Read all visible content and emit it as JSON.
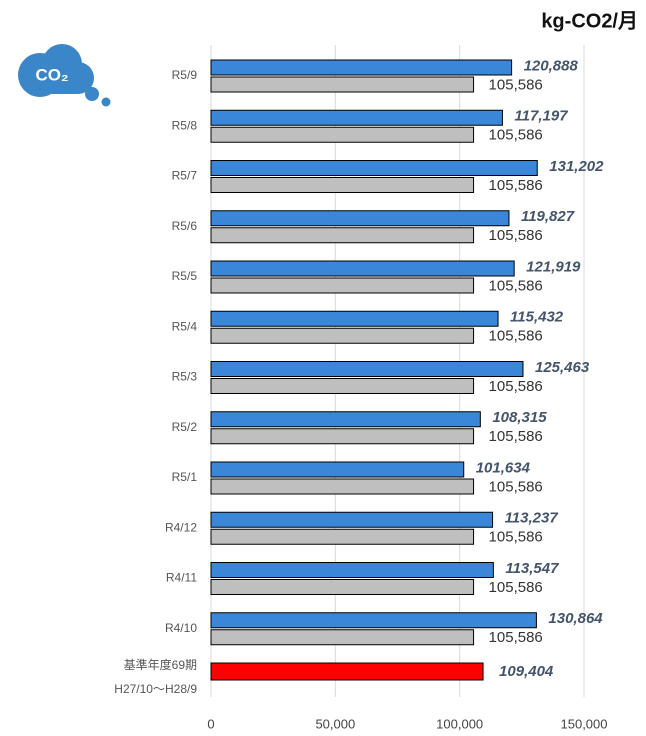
{
  "chart_data": {
    "type": "bar",
    "orientation": "horizontal",
    "unit": "kg‑CO2/月",
    "icon": "CO₂",
    "categories": [
      "R5/9",
      "R5/8",
      "R5/7",
      "R5/6",
      "R5/5",
      "R5/4",
      "R5/3",
      "R5/2",
      "R5/1",
      "R4/12",
      "R4/11",
      "R4/10"
    ],
    "series": [
      {
        "color": "#3a86d8",
        "values": [
          120888,
          117197,
          131202,
          119827,
          121919,
          115432,
          125463,
          108315,
          101634,
          113237,
          113547,
          130864
        ],
        "value_labels": [
          "120,888",
          "117,197",
          "131,202",
          "119,827",
          "121,919",
          "115,432",
          "125,463",
          "108,315",
          "101,634",
          "113,237",
          "113,547",
          "130,864"
        ]
      },
      {
        "color": "#bfbfbf",
        "values": [
          105586,
          105586,
          105586,
          105586,
          105586,
          105586,
          105586,
          105586,
          105586,
          105586,
          105586,
          105586
        ],
        "value_labels": [
          "105,586",
          "105,586",
          "105,586",
          "105,586",
          "105,586",
          "105,586",
          "105,586",
          "105,586",
          "105,586",
          "105,586",
          "105,586",
          "105,586"
        ]
      }
    ],
    "baseline": {
      "label": "基準年度69期",
      "period": "H27/10～H28/9",
      "value": 109404,
      "value_label": "109,404",
      "color": "#ff0000"
    },
    "xlim": [
      0,
      150000
    ],
    "xticks": [
      0,
      {
        "value": 50000,
        "label": "50,000"
      },
      {
        "value": 100000,
        "label": "100,000"
      },
      {
        "value": 150000,
        "label": "150,000"
      }
    ],
    "grid": true
  }
}
